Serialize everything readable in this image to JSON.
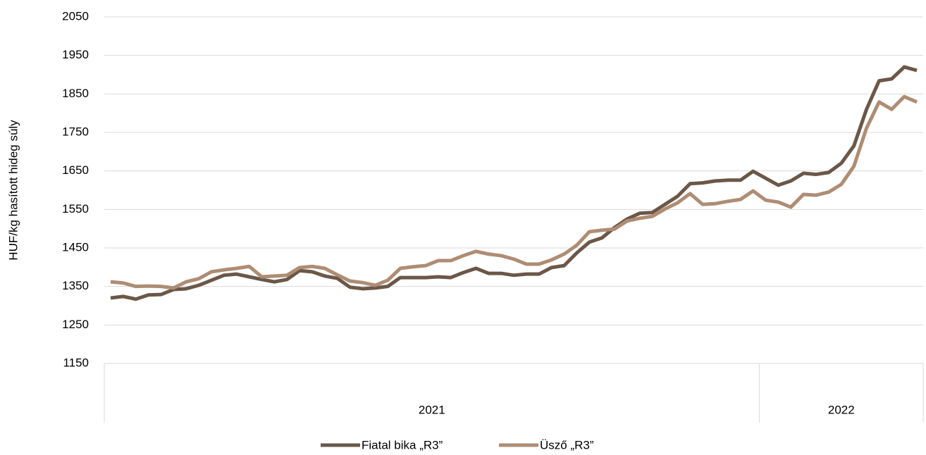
{
  "chart_data": {
    "type": "line",
    "y_label": "HUF/kg hasított hideg súly",
    "categories": [
      null,
      null,
      null,
      null,
      null,
      null,
      null,
      null,
      null,
      null,
      null,
      null,
      null,
      null,
      null,
      null,
      null,
      null,
      null,
      null,
      null,
      null,
      null,
      null,
      null,
      null,
      null,
      null,
      null,
      null,
      null,
      null,
      null,
      null,
      null,
      null,
      null,
      null,
      null,
      null,
      null,
      null,
      null,
      null,
      null,
      null,
      null,
      null,
      null,
      null,
      null,
      null,
      null,
      null,
      null,
      null,
      null,
      null,
      null,
      null,
      null,
      null,
      null,
      null,
      null
    ],
    "groups": [
      {
        "label": "2021",
        "count": 52
      },
      {
        "label": "2022",
        "count": 13
      }
    ],
    "series": [
      {
        "name": "Fiatal bika „R3”",
        "color": "#6b5748",
        "values": [
          1320,
          1324,
          1317,
          1328,
          1329,
          1342,
          1344,
          1353,
          1366,
          1379,
          1382,
          1375,
          1368,
          1362,
          1368,
          1391,
          1388,
          1377,
          1371,
          1348,
          1344,
          1346,
          1350,
          1373,
          1373,
          1373,
          1375,
          1373,
          1386,
          1397,
          1384,
          1384,
          1379,
          1382,
          1382,
          1399,
          1404,
          1437,
          1465,
          1476,
          1503,
          1525,
          1540,
          1542,
          1563,
          1584,
          1617,
          1619,
          1624,
          1626,
          1626,
          1649,
          1631,
          1613,
          1624,
          1644,
          1641,
          1646,
          1670,
          1715,
          1810,
          1884,
          1889,
          1920,
          1911
        ]
      },
      {
        "name": "Üsző „R3”",
        "color": "#ae8d74",
        "values": [
          1362,
          1359,
          1350,
          1351,
          1350,
          1346,
          1362,
          1370,
          1388,
          1393,
          1397,
          1402,
          1375,
          1377,
          1379,
          1399,
          1402,
          1397,
          1380,
          1364,
          1360,
          1353,
          1366,
          1397,
          1401,
          1404,
          1417,
          1417,
          1430,
          1441,
          1434,
          1430,
          1421,
          1408,
          1408,
          1419,
          1434,
          1457,
          1492,
          1496,
          1499,
          1520,
          1527,
          1532,
          1551,
          1567,
          1591,
          1563,
          1565,
          1571,
          1576,
          1598,
          1574,
          1569,
          1556,
          1589,
          1587,
          1595,
          1615,
          1662,
          1761,
          1829,
          1810,
          1843,
          1829
        ]
      }
    ],
    "ylim": [
      1150,
      2050
    ],
    "yticks": [
      1150,
      1250,
      1350,
      1450,
      1550,
      1650,
      1750,
      1850,
      1950,
      2050
    ],
    "grid": true,
    "legend": "bottom"
  }
}
